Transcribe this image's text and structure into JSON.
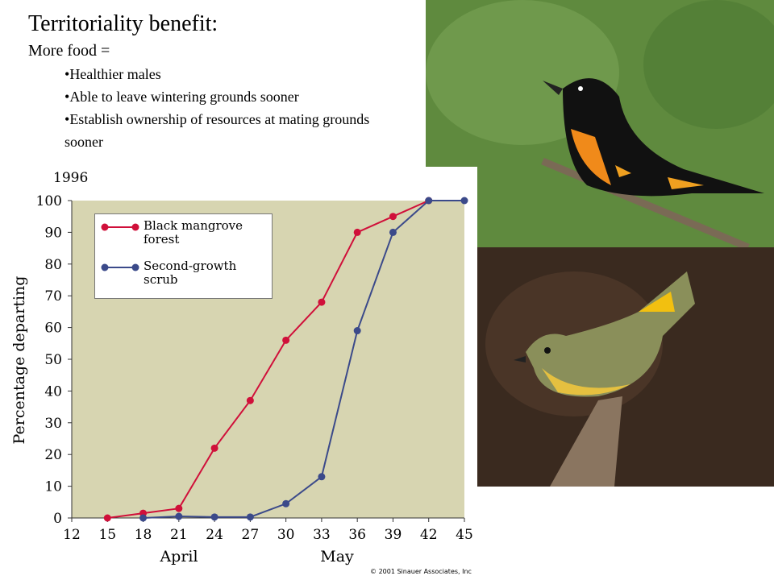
{
  "slide": {
    "title": "Territoriality benefit:",
    "subtitle": "More food =",
    "bullets": [
      "Healthier males",
      "Able to leave wintering grounds sooner",
      "Establish ownership of resources at mating grounds sooner"
    ]
  },
  "chart_data": {
    "type": "line",
    "title": "1996",
    "ylabel": "Percentage departing",
    "annotations": [
      "April",
      "May"
    ],
    "credit": "© 2001 Sinauer Associates, Inc",
    "xlim": [
      12,
      45
    ],
    "xticks": [
      12,
      15,
      18,
      21,
      24,
      27,
      30,
      33,
      36,
      39,
      42,
      45
    ],
    "ylim": [
      0,
      100
    ],
    "yticks": [
      0,
      10,
      20,
      30,
      40,
      50,
      60,
      70,
      80,
      90,
      100
    ],
    "legend": "upper left",
    "series": [
      {
        "name": "Black mangrove forest",
        "color": "#d0103a",
        "x": [
          15,
          18,
          21,
          24,
          27,
          30,
          33,
          36,
          39,
          42
        ],
        "values": [
          0,
          1.5,
          3,
          22,
          37,
          56,
          68,
          90,
          95,
          100
        ]
      },
      {
        "name": "Second-growth scrub",
        "color": "#3b4a8a",
        "x": [
          18,
          21,
          24,
          27,
          30,
          33,
          36,
          39,
          42,
          45
        ],
        "values": [
          0,
          0.5,
          0.3,
          0.3,
          4.5,
          13,
          59,
          90,
          100,
          100
        ]
      }
    ]
  }
}
